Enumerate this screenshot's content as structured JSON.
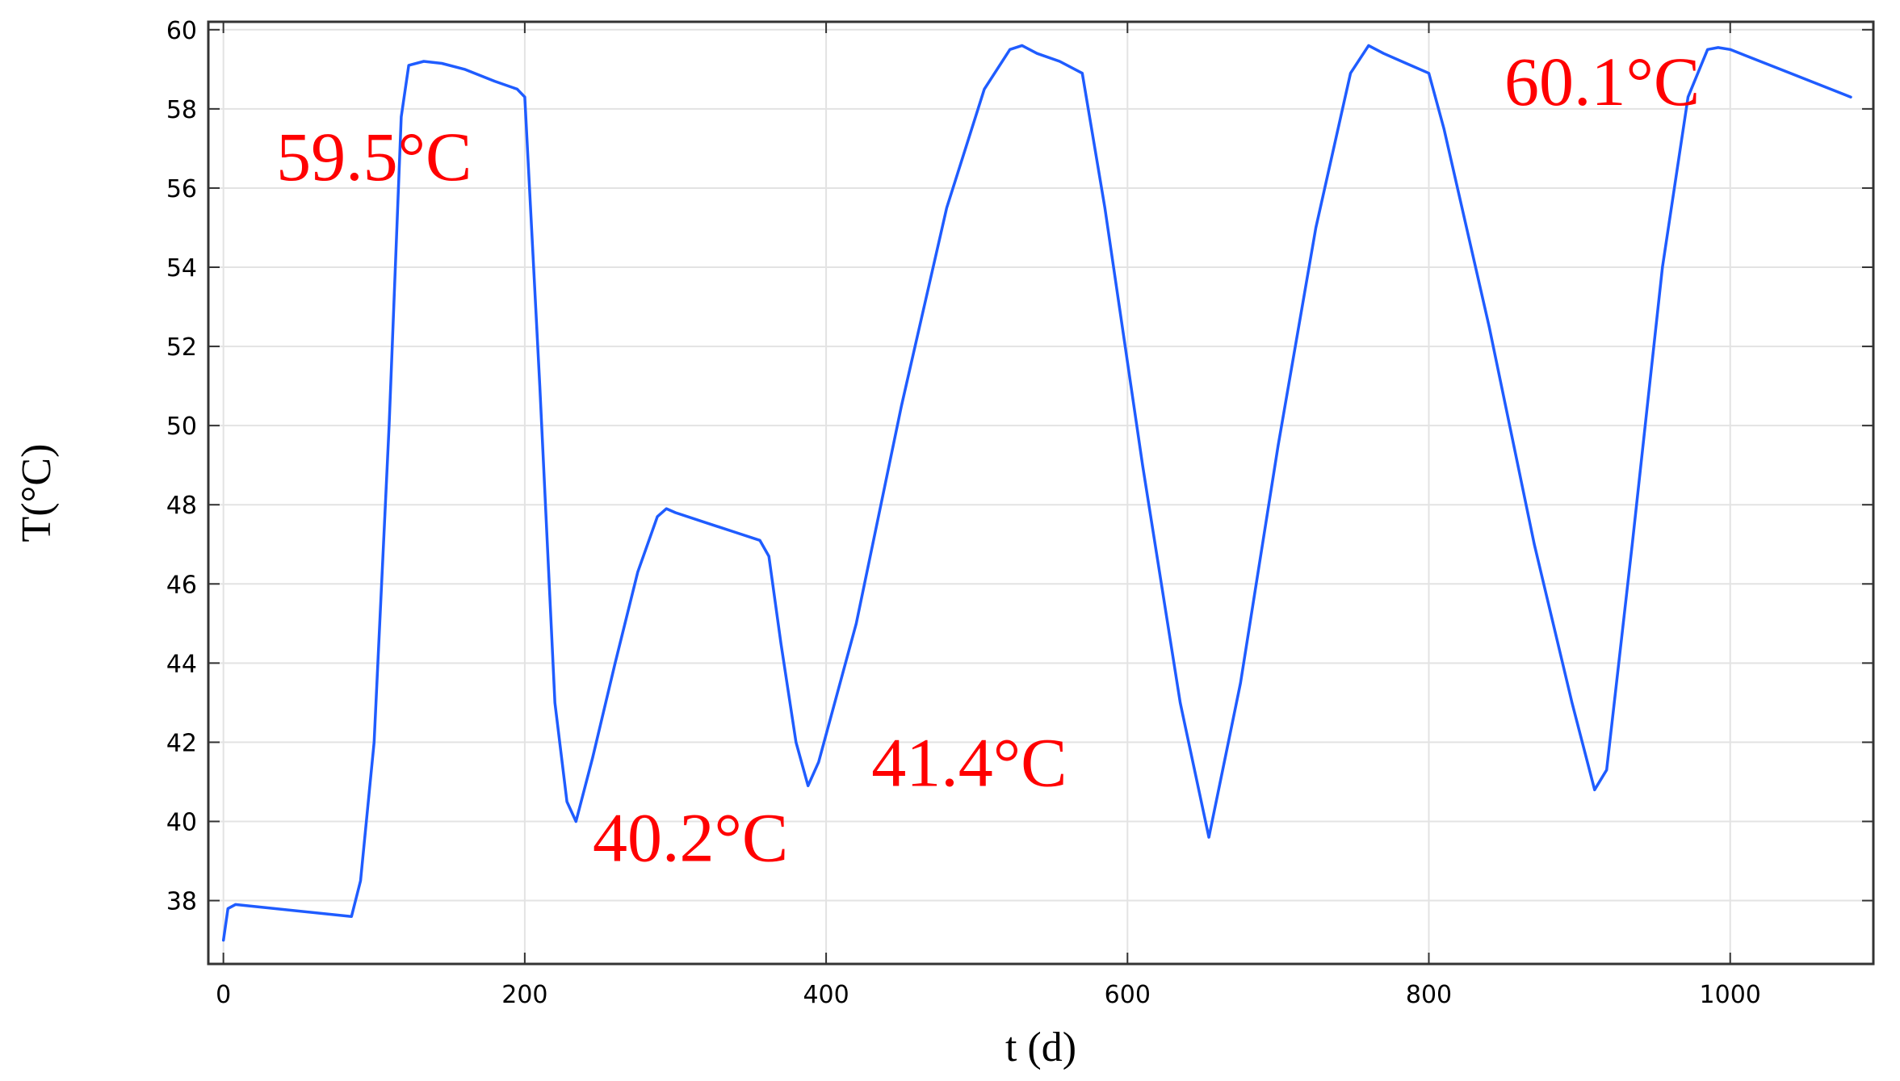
{
  "chart_data": {
    "type": "line",
    "title": "",
    "xlabel": "t (d)",
    "ylabel": "T(°C)",
    "xlim": [
      -10,
      1095
    ],
    "ylim": [
      36.4,
      60.2
    ],
    "xticks": [
      0,
      200,
      400,
      600,
      800,
      1000
    ],
    "yticks": [
      38,
      40,
      42,
      44,
      46,
      48,
      50,
      52,
      54,
      56,
      58,
      60
    ],
    "grid": true,
    "series_color": "#1f5cff",
    "series": [
      {
        "x": [
          0,
          3,
          8,
          85,
          91,
          100,
          110,
          118,
          123,
          133,
          145,
          160,
          180,
          195,
          200,
          210,
          220,
          228,
          234,
          245,
          260,
          275,
          288,
          294,
          300,
          320,
          340,
          356,
          362,
          370,
          380,
          388,
          395,
          420,
          450,
          480,
          505,
          522,
          530,
          540,
          555,
          570,
          585,
          610,
          635,
          654,
          675,
          700,
          725,
          748,
          760,
          770,
          785,
          800,
          810,
          840,
          870,
          895,
          910,
          918,
          935,
          955,
          972,
          985,
          992,
          1000,
          1040,
          1080
        ],
        "y": [
          37.0,
          37.8,
          37.9,
          37.6,
          38.5,
          42.0,
          50.0,
          57.8,
          59.1,
          59.2,
          59.15,
          59.0,
          58.7,
          58.5,
          58.3,
          51.0,
          43.0,
          40.5,
          40.0,
          41.6,
          44.0,
          46.3,
          47.7,
          47.9,
          47.8,
          47.55,
          47.3,
          47.1,
          46.7,
          44.5,
          42.0,
          40.9,
          41.5,
          45.0,
          50.5,
          55.5,
          58.5,
          59.5,
          59.6,
          59.4,
          59.2,
          58.9,
          55.5,
          49.0,
          43.0,
          39.6,
          43.5,
          49.5,
          55.0,
          58.9,
          59.6,
          59.4,
          59.15,
          58.9,
          57.5,
          52.5,
          47.0,
          43.0,
          40.8,
          41.3,
          47.0,
          54.0,
          58.3,
          59.5,
          59.55,
          59.5,
          58.9,
          58.3
        ]
      }
    ],
    "annotations": [
      {
        "text": "59.5°C",
        "x": 100,
        "y": 56.2
      },
      {
        "text": "40.2°C",
        "x": 310,
        "y": 39.0
      },
      {
        "text": "41.4°C",
        "x": 495,
        "y": 40.9
      },
      {
        "text": "60.1°C",
        "x": 915,
        "y": 58.1
      }
    ]
  }
}
